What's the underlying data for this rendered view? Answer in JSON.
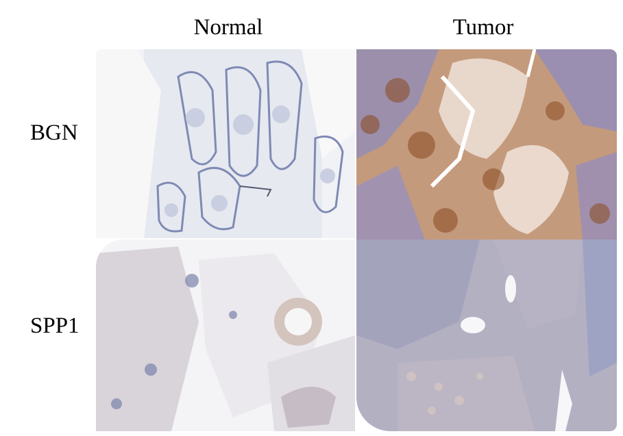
{
  "columns": [
    "Normal",
    "Tumor"
  ],
  "rows": [
    "BGN",
    "SPP1"
  ],
  "panels": [
    {
      "row": "BGN",
      "column": "Normal",
      "stain": "weak",
      "background": "#eef0f4"
    },
    {
      "row": "BGN",
      "column": "Tumor",
      "stain": "strong",
      "background": "#caa58a"
    },
    {
      "row": "SPP1",
      "column": "Normal",
      "stain": "weak",
      "background": "#e8e6ea"
    },
    {
      "row": "SPP1",
      "column": "Tumor",
      "stain": "weak",
      "background": "#b8b6c8"
    }
  ],
  "colors": {
    "hematoxylin": "#6f7aa8",
    "dab": "#a0622e",
    "eosin": "#d9c9bf"
  }
}
